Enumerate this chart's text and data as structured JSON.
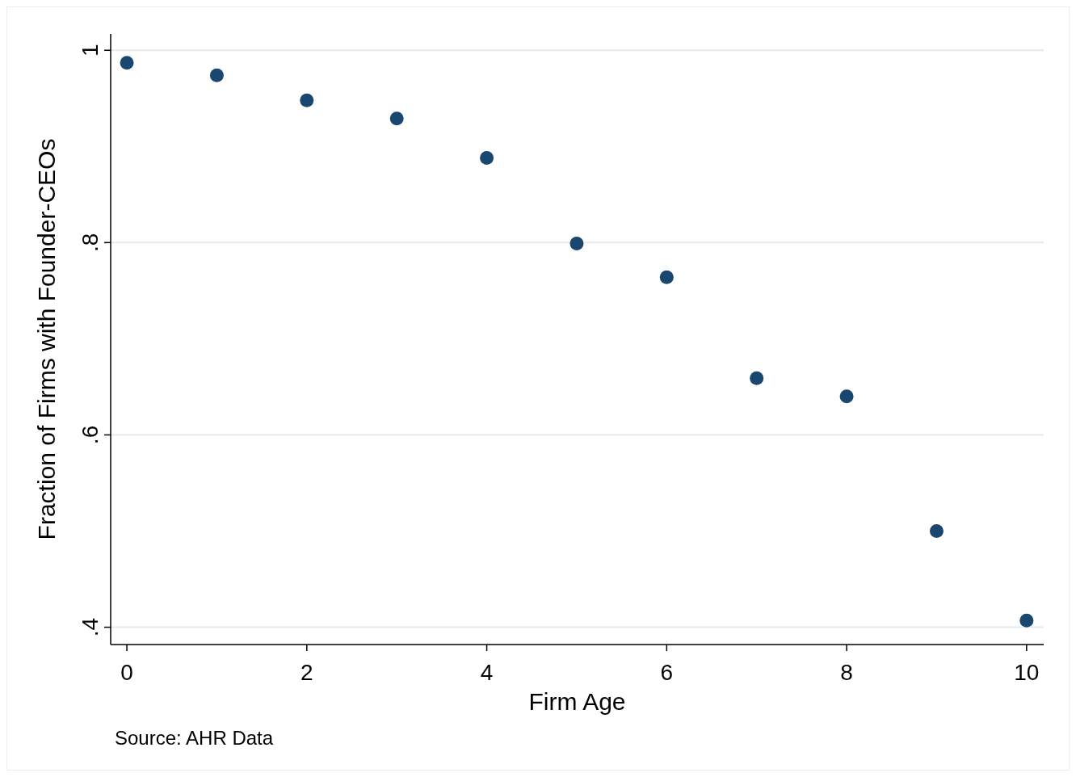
{
  "chart_data": {
    "type": "scatter",
    "xlabel": "Firm Age",
    "ylabel": "Fraction of Firms with Founder-CEOs",
    "annotations": [
      "Source: AHR Data"
    ],
    "x": [
      0,
      1,
      2,
      3,
      4,
      5,
      6,
      7,
      8,
      9,
      10
    ],
    "series": [
      {
        "color": "#1a476f",
        "values": [
          0.987,
          0.974,
          0.948,
          0.929,
          0.888,
          0.799,
          0.764,
          0.659,
          0.64,
          0.5,
          0.407
        ]
      }
    ],
    "xlim": [
      -0.18,
      10.19
    ],
    "ylim": [
      0.382,
      1.017
    ],
    "xticks": [
      0,
      2,
      4,
      6,
      8,
      10
    ],
    "yticks": [
      {
        "value": 0.4,
        "label": ".4"
      },
      {
        "value": 0.6,
        "label": ".6"
      },
      {
        "value": 0.8,
        "label": ".8"
      },
      {
        "value": 1,
        "label": "1"
      }
    ],
    "grid": "y",
    "marker": "circle"
  }
}
